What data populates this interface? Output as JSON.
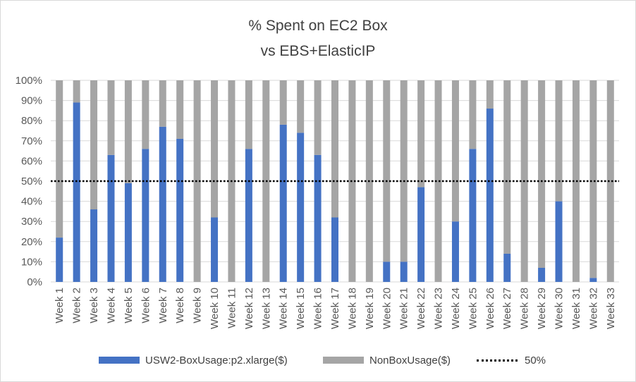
{
  "chart_data": {
    "type": "bar",
    "stacked": true,
    "title": [
      "% Spent on EC2 Box",
      "vs EBS+ElasticIP"
    ],
    "categories": [
      "Week 1",
      "Week 2",
      "Week 3",
      "Week 4",
      "Week 5",
      "Week 6",
      "Week 7",
      "Week 8",
      "Week 9",
      "Week 10",
      "Week 11",
      "Week 12",
      "Week 13",
      "Week 14",
      "Week 15",
      "Week 16",
      "Week 17",
      "Week 18",
      "Week 19",
      "Week 20",
      "Week 21",
      "Week 22",
      "Week 23",
      "Week 24",
      "Week 25",
      "Week 26",
      "Week 27",
      "Week 28",
      "Week 29",
      "Week 30",
      "Week 31",
      "Week 32",
      "Week 33"
    ],
    "series": [
      {
        "name": "USW2-BoxUsage:p2.xlarge($)",
        "color": "#4472c4",
        "values": [
          22,
          89,
          36,
          63,
          49,
          66,
          77,
          71,
          0,
          32,
          0,
          66,
          0,
          78,
          74,
          63,
          32,
          0,
          0,
          10,
          10,
          47,
          0,
          30,
          66,
          86,
          14,
          0,
          7,
          40,
          0,
          2,
          0
        ]
      },
      {
        "name": "NonBoxUsage($)",
        "color": "#a5a5a5",
        "values": [
          78,
          11,
          64,
          37,
          51,
          34,
          23,
          29,
          100,
          68,
          100,
          34,
          100,
          22,
          26,
          37,
          68,
          100,
          100,
          90,
          90,
          53,
          100,
          70,
          34,
          14,
          86,
          100,
          93,
          60,
          100,
          98,
          100
        ]
      }
    ],
    "reference_line": {
      "name": "50%",
      "value": 50,
      "style": "dotted",
      "color": "#000000"
    },
    "yticks": [
      "0%",
      "10%",
      "20%",
      "30%",
      "40%",
      "50%",
      "60%",
      "70%",
      "80%",
      "90%",
      "100%"
    ],
    "ylim": [
      0,
      100
    ],
    "grid": true,
    "legend_position": "bottom"
  }
}
